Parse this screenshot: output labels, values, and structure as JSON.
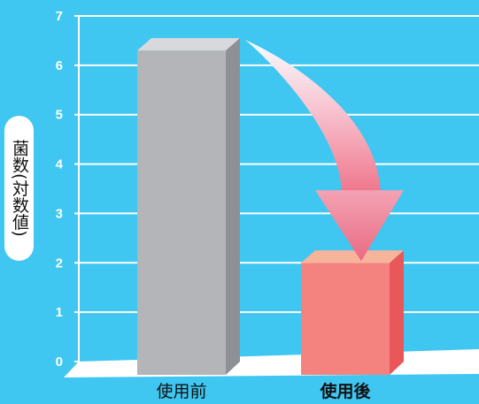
{
  "chart_data": {
    "type": "bar",
    "title": "",
    "xlabel": "",
    "ylabel": "菌数(対数値)",
    "ylim": [
      0,
      7
    ],
    "yticks": [
      0,
      1,
      2,
      3,
      4,
      5,
      6,
      7
    ],
    "grid": true,
    "categories": [
      "使用前",
      "使用後"
    ],
    "values": [
      6.3,
      2.0
    ],
    "colors": {
      "background": "#3fc6f1",
      "bar_before": "#b4b5b8",
      "bar_after": "#f4837f",
      "grid": "#ffffff"
    },
    "annotations": [
      {
        "type": "arrow",
        "from": "使用前",
        "to": "使用後",
        "icon": "curved-down-arrow"
      }
    ]
  }
}
